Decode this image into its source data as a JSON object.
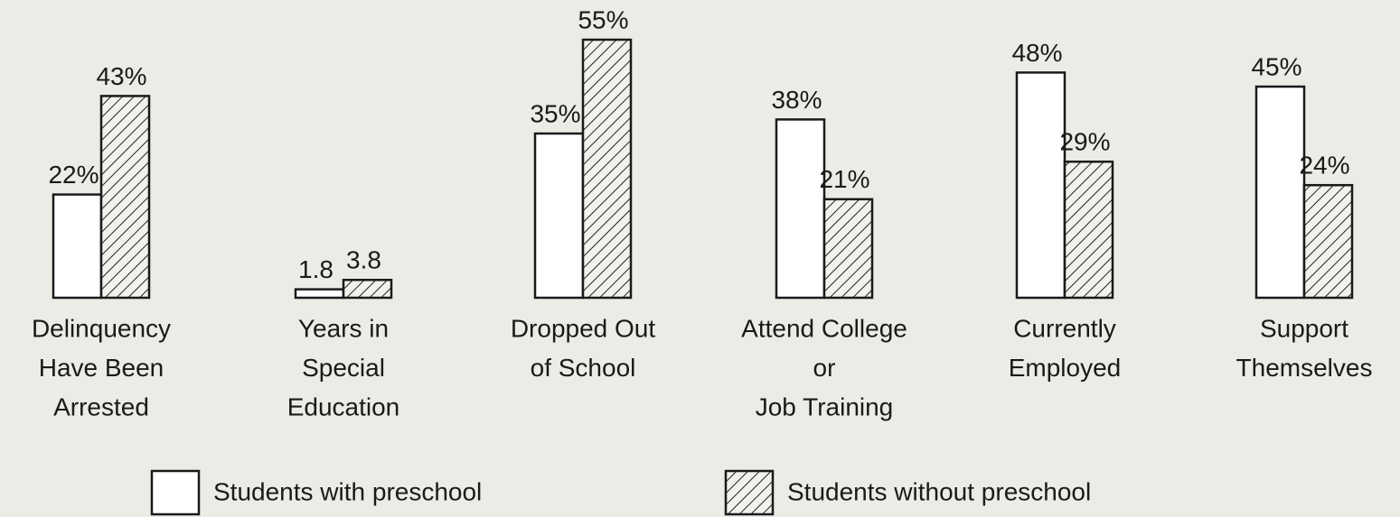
{
  "chart_data": {
    "type": "bar",
    "categories": [
      [
        "Delinquency",
        "Have Been",
        "Arrested"
      ],
      [
        "Years in",
        "Special",
        "Education"
      ],
      [
        "Dropped Out",
        "of School"
      ],
      [
        "Attend College",
        "or",
        "Job Training"
      ],
      [
        "Currently",
        "Employed"
      ],
      [
        "Support",
        "Themselves"
      ]
    ],
    "series": [
      {
        "name": "Students with preschool",
        "color": "#ffffff",
        "pattern": "none",
        "values": [
          22,
          1.8,
          35,
          38,
          48,
          45
        ],
        "value_labels": [
          "22%",
          "1.8",
          "35%",
          "38%",
          "48%",
          "45%"
        ]
      },
      {
        "name": "Students without preschool",
        "color": "#ffffff",
        "pattern": "hatch",
        "values": [
          43,
          3.8,
          55,
          21,
          29,
          24
        ],
        "value_labels": [
          "43%",
          "3.8",
          "55%",
          "21%",
          "29%",
          "24%"
        ]
      }
    ],
    "ylim": [
      0,
      60
    ]
  }
}
